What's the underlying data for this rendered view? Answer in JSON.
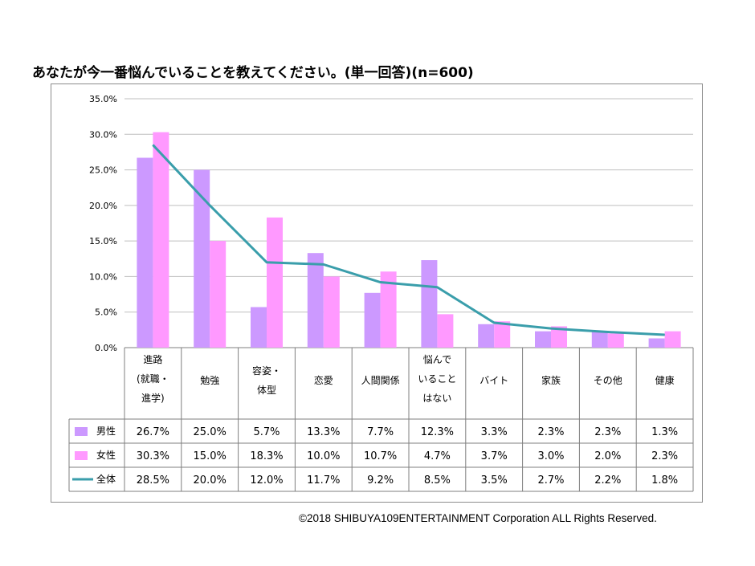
{
  "title": "あなたが今一番悩んでいることを教えてください。(単一回答)(n=600)",
  "copyright": "©2018 SHIBUYA109ENTERTAINMENT Corporation  ALL Rights Reserved.",
  "colors": {
    "male": "#cc99ff",
    "female": "#ff99ff",
    "total": "#3a9eab",
    "grid": "#bfbfbf",
    "axis": "#7f7f7f"
  },
  "chart_data": {
    "type": "bar",
    "ylim": [
      0,
      35
    ],
    "yticks": [
      "0.0%",
      "5.0%",
      "10.0%",
      "15.0%",
      "20.0%",
      "25.0%",
      "30.0%",
      "35.0%"
    ],
    "categories": [
      [
        "進路",
        "(就職・",
        "進学)"
      ],
      [
        "勉強"
      ],
      [
        "容姿・",
        "体型"
      ],
      [
        "恋愛"
      ],
      [
        "人間関係"
      ],
      [
        "悩んで",
        "いること",
        "はない"
      ],
      [
        "バイト"
      ],
      [
        "家族"
      ],
      [
        "その他"
      ],
      [
        "健康"
      ]
    ],
    "series": [
      {
        "name": "男性",
        "kind": "bar",
        "values": [
          26.7,
          25.0,
          5.7,
          13.3,
          7.7,
          12.3,
          3.3,
          2.3,
          2.3,
          1.3
        ],
        "labels": [
          "26.7%",
          "25.0%",
          "5.7%",
          "13.3%",
          "7.7%",
          "12.3%",
          "3.3%",
          "2.3%",
          "2.3%",
          "1.3%"
        ]
      },
      {
        "name": "女性",
        "kind": "bar",
        "values": [
          30.3,
          15.0,
          18.3,
          10.0,
          10.7,
          4.7,
          3.7,
          3.0,
          2.0,
          2.3
        ],
        "labels": [
          "30.3%",
          "15.0%",
          "18.3%",
          "10.0%",
          "10.7%",
          "4.7%",
          "3.7%",
          "3.0%",
          "2.0%",
          "2.3%"
        ]
      },
      {
        "name": "全体",
        "kind": "line",
        "values": [
          28.5,
          20.0,
          12.0,
          11.7,
          9.2,
          8.5,
          3.5,
          2.7,
          2.2,
          1.8
        ],
        "labels": [
          "28.5%",
          "20.0%",
          "12.0%",
          "11.7%",
          "9.2%",
          "8.5%",
          "3.5%",
          "2.7%",
          "2.2%",
          "1.8%"
        ]
      }
    ]
  }
}
